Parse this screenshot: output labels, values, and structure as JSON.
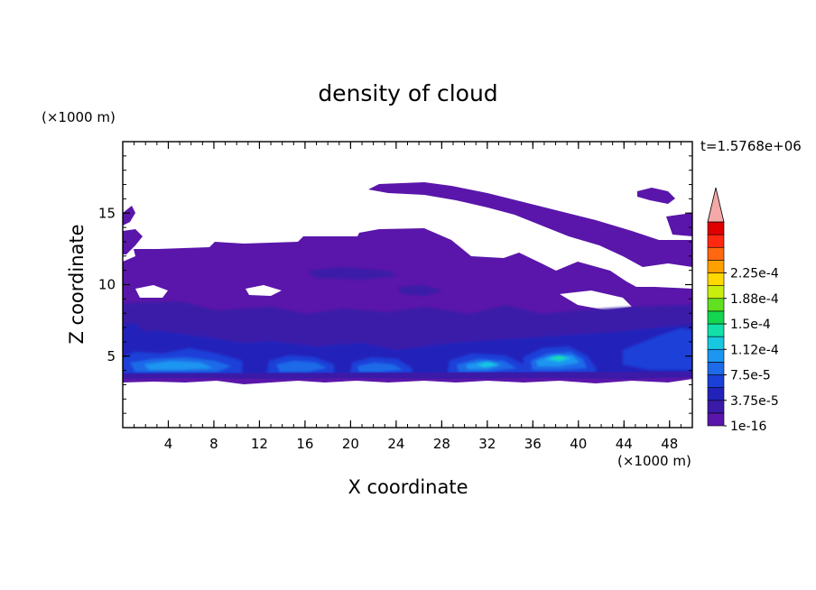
{
  "chart_data": {
    "type": "heatmap",
    "title": "density of cloud",
    "xlabel": "X coordinate",
    "ylabel": "Z coordinate",
    "x_unit": "(×1000 m)",
    "y_unit": "(×1000 m)",
    "time_label": "t=1.5768e+06",
    "xlim": [
      0,
      50
    ],
    "ylim": [
      0,
      20
    ],
    "x_ticks": [
      4,
      8,
      12,
      16,
      20,
      24,
      28,
      32,
      36,
      40,
      44,
      48
    ],
    "y_ticks": [
      5,
      10,
      15
    ],
    "colorbar": {
      "labels": [
        "1e-16",
        "3.75e-5",
        "7.5e-5",
        "1.12e-4",
        "1.5e-4",
        "1.88e-4",
        "2.25e-4"
      ],
      "colors": [
        "#5a16aa",
        "#3b1aa8",
        "#2222bb",
        "#1a40d8",
        "#1e6ae8",
        "#1c96f0",
        "#18c8e0",
        "#12e0a8",
        "#14d650",
        "#60e020",
        "#c8ee10",
        "#ffd800",
        "#ffa000",
        "#ff6810",
        "#ff2810",
        "#e00000"
      ],
      "extend_color": "#f4a8a8"
    }
  }
}
